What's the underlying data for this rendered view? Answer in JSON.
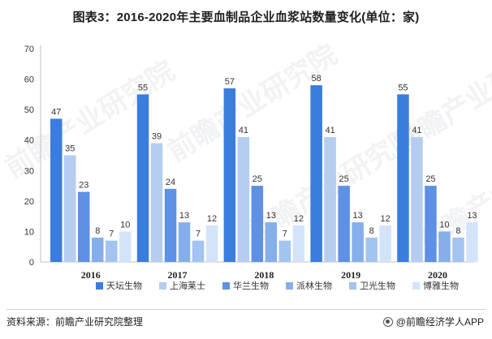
{
  "title": "图表3：2016-2020年主要血制品企业血浆站数量变化(单位：家)",
  "source": "资料来源：前瞻产业研究院整理",
  "credit": "@前瞻经济学人APP",
  "watermark": "前瞻产业研究院",
  "chart_data": {
    "type": "bar",
    "title": "图表3：2016-2020年主要血制品企业血浆站数量变化(单位：家)",
    "xlabel": "",
    "ylabel": "",
    "ylim": [
      0,
      70
    ],
    "yticks": [
      0,
      10,
      20,
      30,
      40,
      50,
      60,
      70
    ],
    "categories": [
      "2016",
      "2017",
      "2018",
      "2019",
      "2020"
    ],
    "legend_position": "bottom",
    "grid": false,
    "series": [
      {
        "name": "天坛生物",
        "color": "#3b7ddd",
        "values": [
          47,
          55,
          57,
          58,
          55
        ]
      },
      {
        "name": "上海莱士",
        "color": "#b4cdf0",
        "values": [
          35,
          39,
          41,
          41,
          41
        ]
      },
      {
        "name": "华兰生物",
        "color": "#5e91e3",
        "values": [
          23,
          24,
          25,
          25,
          25
        ]
      },
      {
        "name": "派林生物",
        "color": "#86aeea",
        "values": [
          8,
          13,
          13,
          13,
          10
        ]
      },
      {
        "name": "卫光生物",
        "color": "#a3c3f0",
        "values": [
          7,
          7,
          7,
          8,
          8
        ]
      },
      {
        "name": "博雅生物",
        "color": "#d3e4fa",
        "values": [
          10,
          12,
          12,
          12,
          13
        ]
      }
    ]
  }
}
